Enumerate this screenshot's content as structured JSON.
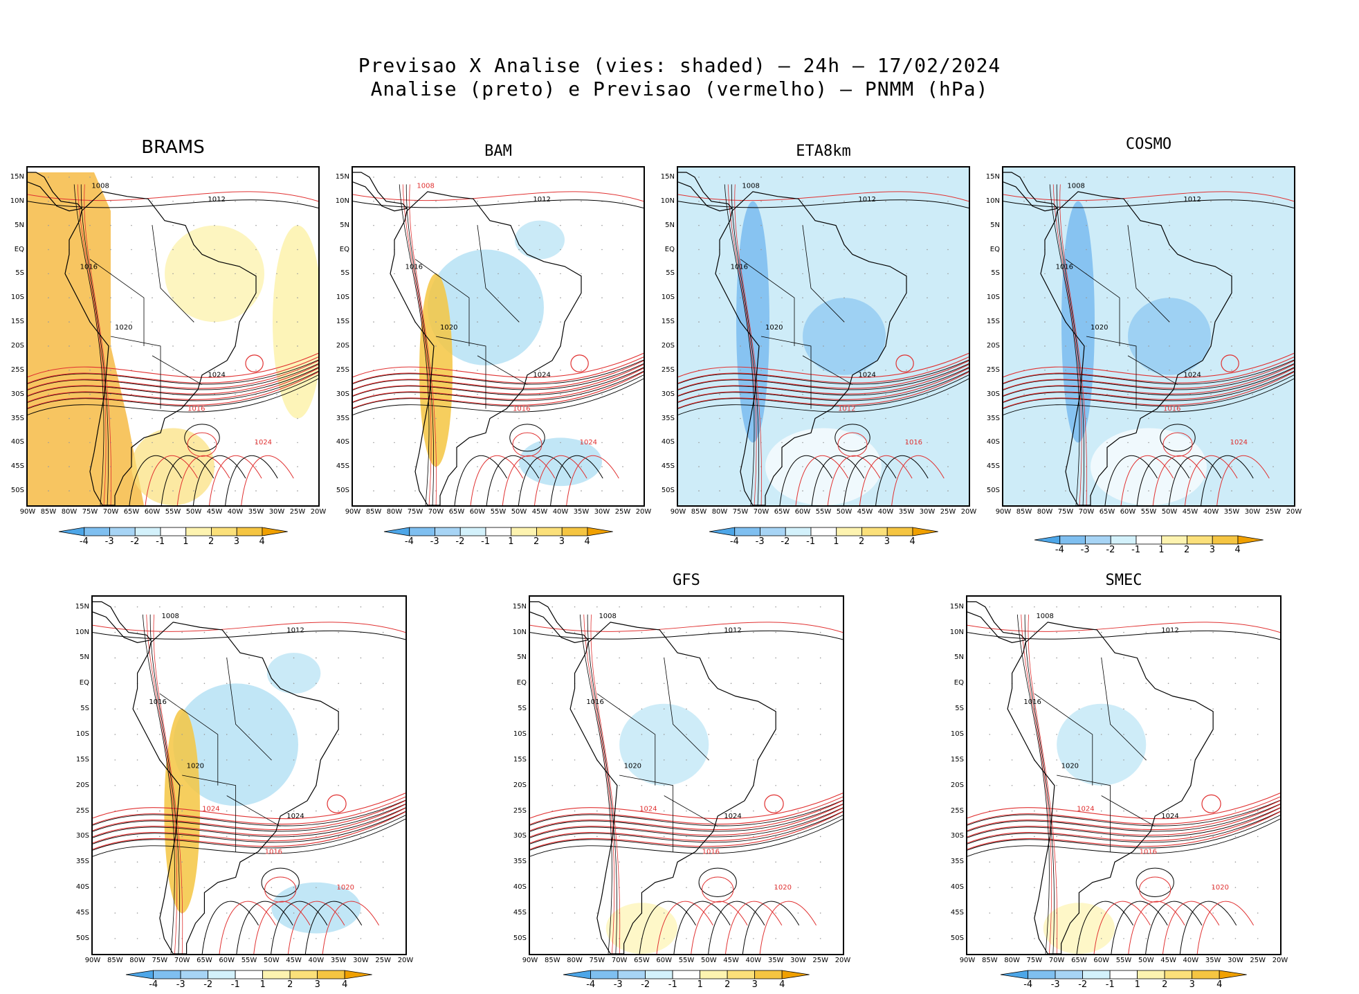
{
  "title": {
    "line1": "Previsao X Analise (vies: shaded) – 24h – 17/02/2024",
    "line2": "Analise (preto) e Previsao (vermelho) – PNMM (hPa)"
  },
  "lat_labels": [
    "15N",
    "10N",
    "5N",
    "EQ",
    "5S",
    "10S",
    "15S",
    "20S",
    "25S",
    "30S",
    "35S",
    "40S",
    "45S",
    "50S"
  ],
  "lon_labels": [
    "90W",
    "85W",
    "80W",
    "75W",
    "70W",
    "65W",
    "60W",
    "55W",
    "50W",
    "45W",
    "40W",
    "35W",
    "30W",
    "25W",
    "20W"
  ],
  "colorbar": {
    "ticks": [
      "-4",
      "-3",
      "-2",
      "-1",
      "1",
      "2",
      "3",
      "4"
    ],
    "colors": [
      "#4da6e8",
      "#7fbff0",
      "#a7d4f5",
      "#d3f1fb",
      "#ffffff",
      "#fdf3b0",
      "#fbe07a",
      "#f5c542",
      "#f0a000"
    ]
  },
  "colors": {
    "analysis_contour": "#000000",
    "forecast_contour": "#e03030",
    "positive_bias": "#f5b73a",
    "negative_bias": "#a6dcf2"
  },
  "panels": [
    {
      "id": "brams",
      "name": "BRAMS",
      "bias": "positive",
      "labels": [
        {
          "t": "1008",
          "c": "black"
        },
        {
          "t": "1012",
          "c": "black"
        },
        {
          "t": "1016",
          "c": "black"
        },
        {
          "t": "1020",
          "c": "black"
        },
        {
          "t": "1024",
          "c": "black"
        },
        {
          "t": "1016",
          "c": "red"
        },
        {
          "t": "1024",
          "c": "red"
        }
      ]
    },
    {
      "id": "bam",
      "name": "BAM",
      "bias": "mixed",
      "labels": [
        {
          "t": "1008",
          "c": "red"
        },
        {
          "t": "1012",
          "c": "black"
        },
        {
          "t": "1016",
          "c": "black"
        },
        {
          "t": "1020",
          "c": "black"
        },
        {
          "t": "1024",
          "c": "black"
        },
        {
          "t": "1016",
          "c": "red"
        },
        {
          "t": "1024",
          "c": "red"
        }
      ]
    },
    {
      "id": "eta8km",
      "name": "ETA8km",
      "bias": "negative",
      "labels": [
        {
          "t": "1008",
          "c": "black"
        },
        {
          "t": "1012",
          "c": "black"
        },
        {
          "t": "1016",
          "c": "black"
        },
        {
          "t": "1020",
          "c": "black"
        },
        {
          "t": "1024",
          "c": "black"
        },
        {
          "t": "1012",
          "c": "red"
        },
        {
          "t": "1016",
          "c": "red"
        }
      ]
    },
    {
      "id": "cosmo",
      "name": "COSMO",
      "bias": "negative",
      "labels": [
        {
          "t": "1008",
          "c": "black"
        },
        {
          "t": "1012",
          "c": "black"
        },
        {
          "t": "1016",
          "c": "black"
        },
        {
          "t": "1020",
          "c": "black"
        },
        {
          "t": "1024",
          "c": "black"
        },
        {
          "t": "1016",
          "c": "red"
        },
        {
          "t": "1024",
          "c": "red"
        }
      ]
    },
    {
      "id": "model5",
      "name": "",
      "bias": "mixed",
      "labels": [
        {
          "t": "1008",
          "c": "black"
        },
        {
          "t": "1012",
          "c": "black"
        },
        {
          "t": "1016",
          "c": "black"
        },
        {
          "t": "1020",
          "c": "black"
        },
        {
          "t": "1024",
          "c": "black"
        },
        {
          "t": "1016",
          "c": "red"
        },
        {
          "t": "1020",
          "c": "red"
        },
        {
          "t": "1024",
          "c": "red"
        }
      ]
    },
    {
      "id": "gfs",
      "name": "GFS",
      "bias": "light",
      "labels": [
        {
          "t": "1008",
          "c": "black"
        },
        {
          "t": "1012",
          "c": "black"
        },
        {
          "t": "1016",
          "c": "black"
        },
        {
          "t": "1020",
          "c": "black"
        },
        {
          "t": "1024",
          "c": "black"
        },
        {
          "t": "1016",
          "c": "red"
        },
        {
          "t": "1020",
          "c": "red"
        },
        {
          "t": "1024",
          "c": "red"
        }
      ]
    },
    {
      "id": "smec",
      "name": "SMEC",
      "bias": "light",
      "labels": [
        {
          "t": "1008",
          "c": "black"
        },
        {
          "t": "1012",
          "c": "black"
        },
        {
          "t": "1016",
          "c": "black"
        },
        {
          "t": "1020",
          "c": "black"
        },
        {
          "t": "1024",
          "c": "black"
        },
        {
          "t": "1016",
          "c": "red"
        },
        {
          "t": "1020",
          "c": "red"
        },
        {
          "t": "1024",
          "c": "red"
        }
      ]
    }
  ]
}
